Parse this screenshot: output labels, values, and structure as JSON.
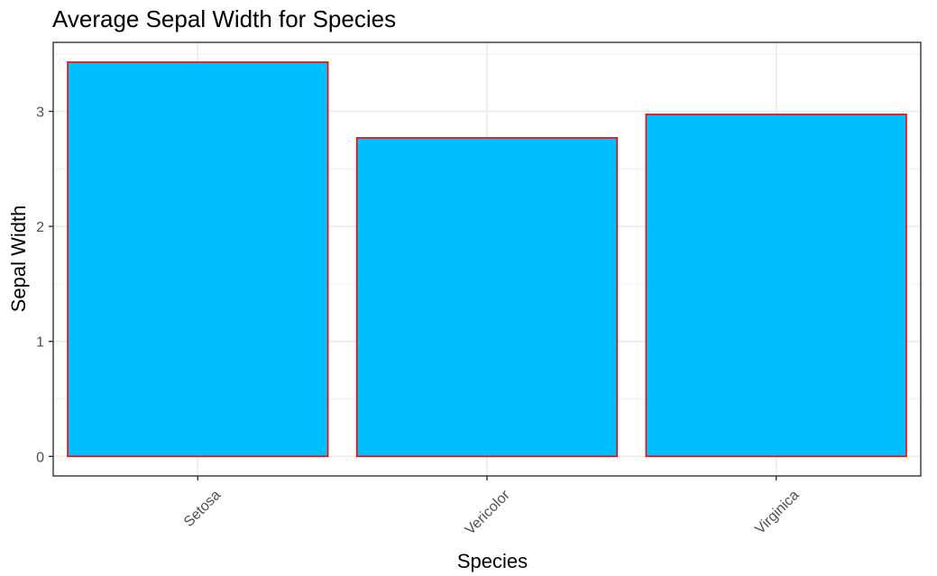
{
  "chart_data": {
    "type": "bar",
    "title": "Average Sepal Width for Species",
    "xlabel": "Species",
    "ylabel": "Sepal Width",
    "categories": [
      "Setosa",
      "Vericolor",
      "Virginica"
    ],
    "values": [
      3.428,
      2.77,
      2.974
    ],
    "ylim": [
      -0.17,
      3.6
    ],
    "yticks": [
      "0",
      "1",
      "2",
      "3"
    ],
    "grid": true,
    "legend": "none",
    "colors": {
      "bar_fill": "#00BFFF",
      "bar_outline": "#FF0000",
      "grid": "#EBEBEB",
      "panel_border": "#333333",
      "tick_text": "#4D4D4D"
    }
  }
}
